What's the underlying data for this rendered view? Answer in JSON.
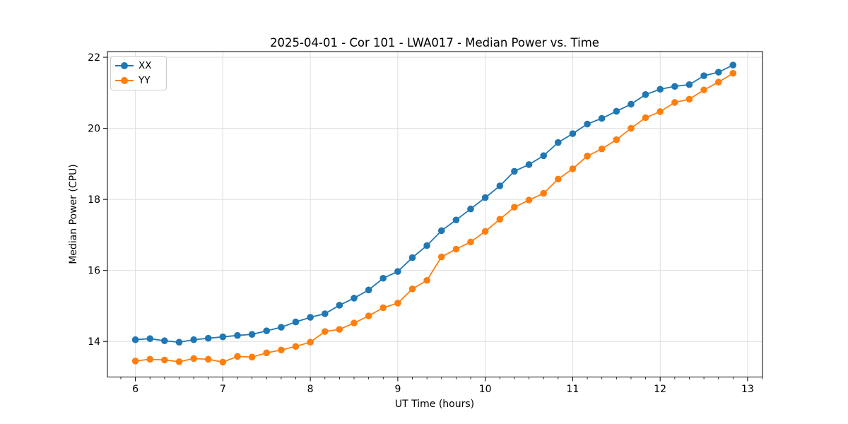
{
  "chart_data": {
    "type": "line",
    "title": "2025-04-01 - Cor 101 - LWA017 - Median Power vs. Time",
    "xlabel": "UT Time (hours)",
    "ylabel": "Median Power (CPU)",
    "xlim": [
      5.68,
      13.17
    ],
    "ylim": [
      13.0,
      22.16
    ],
    "x_ticks": [
      6,
      7,
      8,
      9,
      10,
      11,
      12,
      13
    ],
    "y_ticks": [
      14,
      16,
      18,
      20,
      22
    ],
    "x_minor_step": 0.16667,
    "grid": true,
    "grid_color": "#dedede",
    "legend_position": "upper left",
    "x": [
      6.0,
      6.167,
      6.333,
      6.5,
      6.667,
      6.833,
      7.0,
      7.167,
      7.333,
      7.5,
      7.667,
      7.833,
      8.0,
      8.167,
      8.333,
      8.5,
      8.667,
      8.833,
      9.0,
      9.167,
      9.333,
      9.5,
      9.667,
      9.833,
      10.0,
      10.167,
      10.333,
      10.5,
      10.667,
      10.833,
      11.0,
      11.167,
      11.333,
      11.5,
      11.667,
      11.833,
      12.0,
      12.167,
      12.333,
      12.5,
      12.667,
      12.833
    ],
    "series": [
      {
        "name": "XX",
        "color": "#1f77b4",
        "values": [
          14.05,
          14.08,
          14.02,
          13.98,
          14.05,
          14.09,
          14.13,
          14.17,
          14.2,
          14.3,
          14.4,
          14.55,
          14.68,
          14.78,
          15.02,
          15.22,
          15.45,
          15.78,
          15.97,
          16.36,
          16.7,
          17.12,
          17.42,
          17.73,
          18.05,
          18.38,
          18.79,
          18.98,
          19.23,
          19.6,
          19.85,
          20.12,
          20.28,
          20.48,
          20.68,
          20.95,
          21.1,
          21.18,
          21.23,
          21.48,
          21.58,
          21.78
        ]
      },
      {
        "name": "YY",
        "color": "#ff7f0e",
        "values": [
          13.45,
          13.5,
          13.48,
          13.43,
          13.52,
          13.5,
          13.42,
          13.58,
          13.56,
          13.68,
          13.76,
          13.86,
          13.98,
          14.28,
          14.34,
          14.52,
          14.72,
          14.95,
          15.08,
          15.48,
          15.72,
          16.38,
          16.6,
          16.8,
          17.1,
          17.44,
          17.78,
          17.98,
          18.17,
          18.57,
          18.86,
          19.22,
          19.42,
          19.68,
          20.0,
          20.3,
          20.47,
          20.73,
          20.82,
          21.08,
          21.3,
          21.55
        ]
      }
    ]
  }
}
